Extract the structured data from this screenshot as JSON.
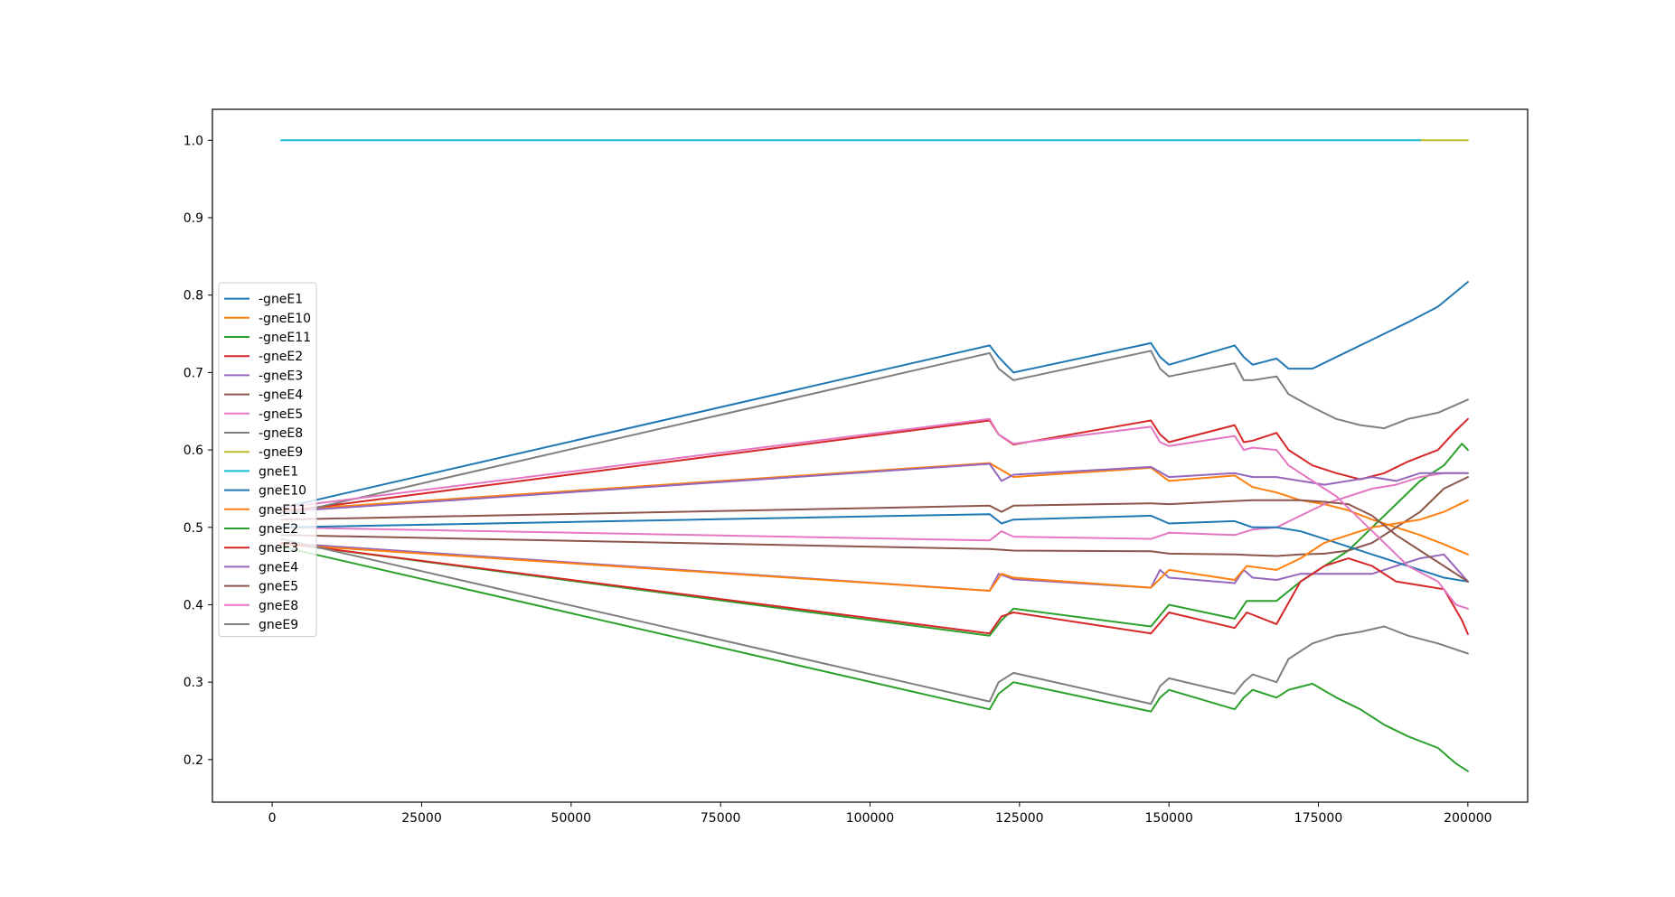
{
  "chart_data": {
    "type": "line",
    "title": "",
    "xlabel": "",
    "ylabel": "",
    "xlim": [
      -10000,
      210000
    ],
    "ylim": [
      0.145,
      1.04
    ],
    "xticks": [
      0,
      25000,
      50000,
      75000,
      100000,
      125000,
      150000,
      175000,
      200000
    ],
    "xtick_labels": [
      "0",
      "25000",
      "50000",
      "75000",
      "100000",
      "125000",
      "150000",
      "175000",
      "200000"
    ],
    "yticks": [
      0.2,
      0.3,
      0.4,
      0.5,
      0.6,
      0.7,
      0.8,
      0.9,
      1.0
    ],
    "ytick_labels": [
      "0.2",
      "0.3",
      "0.4",
      "0.5",
      "0.6",
      "0.7",
      "0.8",
      "0.9",
      "1.0"
    ],
    "grid": false,
    "legend": "center-left",
    "series": [
      {
        "name": "-gneE1",
        "color": "#1f77b4",
        "x": [
          1500,
          120000,
          121500,
          124000,
          147000,
          148500,
          150000,
          161000,
          162500,
          164000,
          168000,
          170000,
          174000,
          178000,
          182000,
          186000,
          190000,
          195000,
          200000
        ],
        "y": [
          0.525,
          0.735,
          0.72,
          0.7,
          0.738,
          0.72,
          0.71,
          0.735,
          0.72,
          0.71,
          0.718,
          0.705,
          0.705,
          0.72,
          0.735,
          0.75,
          0.765,
          0.785,
          0.817
        ]
      },
      {
        "name": "-gneE10",
        "color": "#ff7f0e",
        "x": [
          1500,
          120000,
          124000,
          147000,
          150000,
          161000,
          164000,
          168000,
          172000,
          176000,
          180000,
          184000,
          188000,
          192000,
          196000,
          200000
        ],
        "y": [
          0.522,
          0.583,
          0.565,
          0.577,
          0.56,
          0.567,
          0.552,
          0.545,
          0.535,
          0.53,
          0.522,
          0.51,
          0.5,
          0.49,
          0.478,
          0.465
        ]
      },
      {
        "name": "-gneE11",
        "color": "#2ca02c",
        "x": [
          1500,
          120000,
          122000,
          124000,
          147000,
          150000,
          161000,
          163000,
          168000,
          172000,
          176000,
          180000,
          184000,
          188000,
          192000,
          196000,
          199000,
          200000
        ],
        "y": [
          0.48,
          0.36,
          0.38,
          0.395,
          0.372,
          0.4,
          0.382,
          0.405,
          0.405,
          0.43,
          0.45,
          0.47,
          0.5,
          0.53,
          0.56,
          0.58,
          0.608,
          0.6
        ]
      },
      {
        "name": "-gneE2",
        "color": "#d62728",
        "x": [
          1500,
          120000,
          121500,
          124000,
          147000,
          148500,
          150000,
          161000,
          162500,
          164000,
          168000,
          170000,
          174000,
          178000,
          182000,
          186000,
          190000,
          195000,
          198000,
          200000
        ],
        "y": [
          0.52,
          0.638,
          0.62,
          0.607,
          0.638,
          0.62,
          0.61,
          0.632,
          0.61,
          0.612,
          0.622,
          0.6,
          0.58,
          0.57,
          0.562,
          0.57,
          0.585,
          0.6,
          0.625,
          0.64
        ]
      },
      {
        "name": "-gneE3",
        "color": "#9467bd",
        "x": [
          1500,
          120000,
          121500,
          124000,
          147000,
          148500,
          150000,
          161000,
          162500,
          164000,
          168000,
          172000,
          176000,
          180000,
          184000,
          188000,
          192000,
          196000,
          200000
        ],
        "y": [
          0.48,
          0.418,
          0.44,
          0.433,
          0.422,
          0.445,
          0.435,
          0.428,
          0.445,
          0.435,
          0.432,
          0.44,
          0.44,
          0.44,
          0.44,
          0.45,
          0.46,
          0.465,
          0.43
        ]
      },
      {
        "name": "-gneE4",
        "color": "#8c564b",
        "x": [
          1500,
          120000,
          124000,
          147000,
          150000,
          161000,
          164000,
          168000,
          172000,
          176000,
          180000,
          184000,
          188000,
          192000,
          196000,
          200000
        ],
        "y": [
          0.49,
          0.472,
          0.47,
          0.469,
          0.466,
          0.465,
          0.464,
          0.463,
          0.465,
          0.466,
          0.47,
          0.48,
          0.5,
          0.52,
          0.55,
          0.565
        ]
      },
      {
        "name": "-gneE5",
        "color": "#e377c2",
        "x": [
          1500,
          120000,
          122000,
          124000,
          147000,
          150000,
          161000,
          164000,
          168000,
          172000,
          176000,
          180000,
          184000,
          188000,
          192000,
          196000,
          200000
        ],
        "y": [
          0.5,
          0.483,
          0.495,
          0.488,
          0.485,
          0.493,
          0.49,
          0.497,
          0.5,
          0.515,
          0.53,
          0.54,
          0.55,
          0.555,
          0.565,
          0.57,
          0.57
        ]
      },
      {
        "name": "-gneE8",
        "color": "#7f7f7f",
        "x": [
          1500,
          120000,
          121500,
          124000,
          147000,
          148500,
          150000,
          161000,
          162500,
          164000,
          168000,
          170000,
          174000,
          178000,
          182000,
          186000,
          190000,
          195000,
          200000
        ],
        "y": [
          0.515,
          0.725,
          0.705,
          0.69,
          0.728,
          0.705,
          0.695,
          0.712,
          0.69,
          0.69,
          0.695,
          0.672,
          0.655,
          0.64,
          0.632,
          0.628,
          0.64,
          0.648,
          0.665
        ]
      },
      {
        "name": "-gneE9",
        "color": "#bcbd22",
        "x": [
          192000,
          200000
        ],
        "y": [
          1.0,
          1.0
        ]
      },
      {
        "name": "gneE1",
        "color": "#17becf",
        "x": [
          1500,
          192000
        ],
        "y": [
          1.0,
          1.0
        ]
      },
      {
        "name": "gneE10",
        "color": "#1f77b4",
        "x": [
          1500,
          120000,
          122000,
          124000,
          147000,
          150000,
          161000,
          164000,
          168000,
          172000,
          176000,
          180000,
          184000,
          188000,
          192000,
          196000,
          200000
        ],
        "y": [
          0.5,
          0.517,
          0.505,
          0.51,
          0.515,
          0.505,
          0.508,
          0.5,
          0.5,
          0.495,
          0.485,
          0.475,
          0.465,
          0.455,
          0.445,
          0.435,
          0.43
        ]
      },
      {
        "name": "gneE11",
        "color": "#ff7f0e",
        "x": [
          1500,
          120000,
          122000,
          124000,
          147000,
          150000,
          161000,
          163000,
          168000,
          172000,
          176000,
          180000,
          184000,
          188000,
          192000,
          196000,
          200000
        ],
        "y": [
          0.478,
          0.418,
          0.44,
          0.435,
          0.422,
          0.445,
          0.432,
          0.45,
          0.445,
          0.46,
          0.48,
          0.49,
          0.5,
          0.505,
          0.51,
          0.52,
          0.535
        ]
      },
      {
        "name": "gneE2",
        "color": "#2ca02c",
        "x": [
          1500,
          120000,
          121500,
          124000,
          147000,
          148500,
          150000,
          161000,
          162500,
          164000,
          168000,
          170000,
          174000,
          178000,
          182000,
          186000,
          190000,
          195000,
          198000,
          200000
        ],
        "y": [
          0.475,
          0.265,
          0.285,
          0.3,
          0.262,
          0.28,
          0.29,
          0.265,
          0.28,
          0.29,
          0.28,
          0.29,
          0.298,
          0.28,
          0.265,
          0.245,
          0.23,
          0.215,
          0.195,
          0.185
        ]
      },
      {
        "name": "gneE3",
        "color": "#d62728",
        "x": [
          1500,
          120000,
          122000,
          124000,
          147000,
          150000,
          161000,
          163000,
          168000,
          172000,
          176000,
          180000,
          184000,
          188000,
          192000,
          196000,
          199000,
          200000
        ],
        "y": [
          0.48,
          0.363,
          0.385,
          0.39,
          0.363,
          0.39,
          0.37,
          0.39,
          0.375,
          0.43,
          0.45,
          0.46,
          0.45,
          0.43,
          0.425,
          0.42,
          0.38,
          0.362
        ]
      },
      {
        "name": "gneE4",
        "color": "#9467bd",
        "x": [
          1500,
          120000,
          122000,
          124000,
          147000,
          150000,
          161000,
          164000,
          168000,
          172000,
          176000,
          180000,
          184000,
          188000,
          192000,
          196000,
          200000
        ],
        "y": [
          0.52,
          0.582,
          0.56,
          0.568,
          0.578,
          0.565,
          0.57,
          0.565,
          0.565,
          0.56,
          0.555,
          0.56,
          0.565,
          0.56,
          0.57,
          0.57,
          0.57
        ]
      },
      {
        "name": "gneE5",
        "color": "#8c564b",
        "x": [
          1500,
          120000,
          122000,
          124000,
          147000,
          150000,
          161000,
          164000,
          168000,
          172000,
          176000,
          180000,
          184000,
          188000,
          192000,
          196000,
          200000
        ],
        "y": [
          0.51,
          0.528,
          0.52,
          0.528,
          0.531,
          0.53,
          0.534,
          0.535,
          0.535,
          0.535,
          0.533,
          0.53,
          0.515,
          0.49,
          0.47,
          0.45,
          0.43
        ]
      },
      {
        "name": "gneE8",
        "color": "#e377c2",
        "x": [
          1500,
          120000,
          121500,
          124000,
          147000,
          148500,
          150000,
          161000,
          162500,
          164000,
          168000,
          170000,
          174000,
          178000,
          182000,
          186000,
          190000,
          195000,
          198000,
          200000
        ],
        "y": [
          0.525,
          0.64,
          0.62,
          0.608,
          0.63,
          0.61,
          0.605,
          0.618,
          0.6,
          0.603,
          0.6,
          0.58,
          0.56,
          0.54,
          0.51,
          0.48,
          0.45,
          0.43,
          0.4,
          0.395
        ]
      },
      {
        "name": "gneE9",
        "color": "#7f7f7f",
        "x": [
          1500,
          120000,
          121500,
          124000,
          147000,
          148500,
          150000,
          161000,
          162500,
          164000,
          168000,
          170000,
          174000,
          178000,
          182000,
          186000,
          190000,
          195000,
          200000
        ],
        "y": [
          0.485,
          0.275,
          0.3,
          0.312,
          0.272,
          0.295,
          0.305,
          0.285,
          0.3,
          0.31,
          0.3,
          0.33,
          0.35,
          0.36,
          0.365,
          0.372,
          0.36,
          0.35,
          0.337
        ]
      }
    ]
  }
}
